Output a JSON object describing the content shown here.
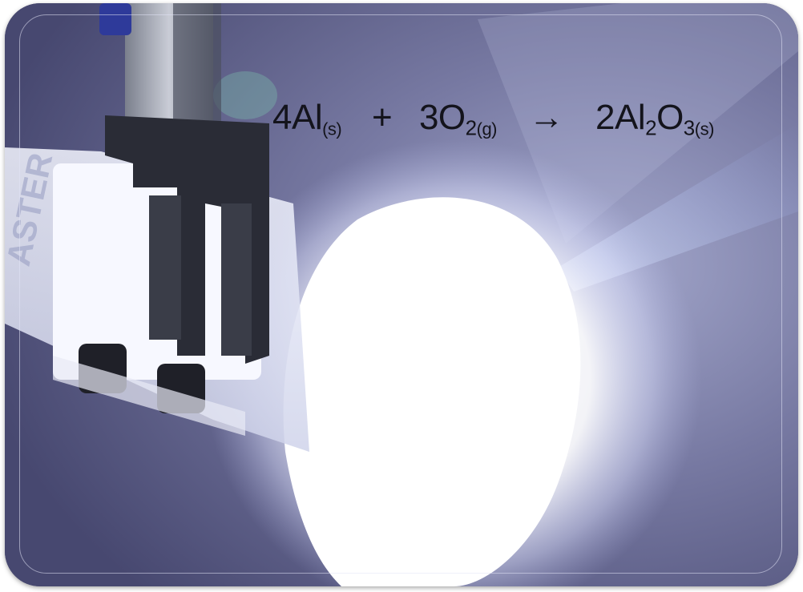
{
  "equation": {
    "reactant1_coeff": "4",
    "reactant1_symbol": "Al",
    "reactant1_state": "(s)",
    "plus": "+",
    "reactant2_coeff": "3",
    "reactant2_symbol": "O",
    "reactant2_sub": "2",
    "reactant2_state": "(g)",
    "arrow": "→",
    "product_coeff": "2",
    "product_symbol1": "Al",
    "product_sub1": "2",
    "product_symbol2": "O",
    "product_sub2": "3",
    "product_state": "(s)"
  },
  "colors": {
    "background": "#55567e",
    "flame": "#ffffff",
    "text": "#14141c"
  },
  "image_content": {
    "scene": "burning aluminum in oxygen with clamp",
    "clamp_label_fragment": "ASTER"
  }
}
